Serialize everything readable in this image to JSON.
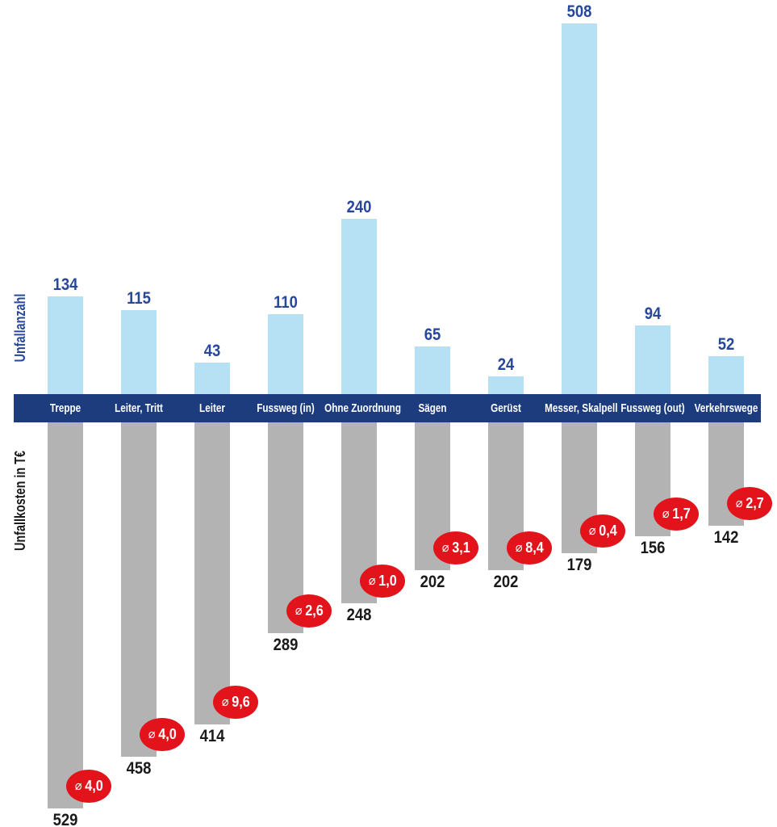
{
  "chart_data": {
    "type": "bar",
    "subtype": "diverging-vertical-dual-measure",
    "categories": [
      "Treppe",
      "Leiter, Tritt",
      "Leiter",
      "Fussweg (in)",
      "Ohne Zuordnung",
      "Sägen",
      "Gerüst",
      "Messer, Skalpell",
      "Fussweg (out)",
      "Verkehrswege"
    ],
    "series": [
      {
        "name": "Unfallanzahl",
        "direction": "up",
        "values": [
          134,
          115,
          43,
          110,
          240,
          65,
          24,
          508,
          94,
          52
        ]
      },
      {
        "name": "Unfallkosten in T€",
        "direction": "down",
        "values": [
          529,
          458,
          414,
          289,
          248,
          202,
          202,
          179,
          156,
          142
        ]
      },
      {
        "display": "badge",
        "symbol": "⌀",
        "values": [
          "4,0",
          "4,0",
          "9,6",
          "2,6",
          "1,0",
          "3,1",
          "8,4",
          "0,4",
          "1,7",
          "2,7"
        ]
      }
    ],
    "ylabel_top": "Unfallanzahl",
    "ylabel_bottom": "Unfallkosten in T€",
    "grid": false,
    "legend_position": "none"
  },
  "colors": {
    "background": "#FFFFFF",
    "count_bar": "#B6E0F4",
    "count_label": "#27479B",
    "band": "#1C3C7E",
    "band_label": "#FFFFFF",
    "cost_bar": "#B3B3B3",
    "cost_label": "#1A1A1A",
    "badge": "#E2131B",
    "badge_text": "#FFFFFF"
  }
}
